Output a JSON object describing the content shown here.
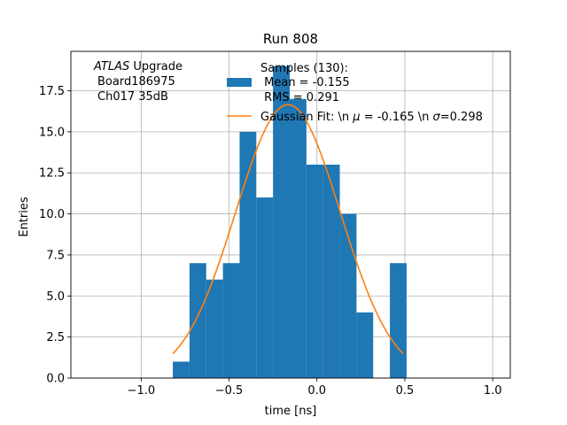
{
  "chart_data": {
    "type": "bar",
    "title": "Run 808",
    "xlabel": "time [ns]",
    "ylabel": "Entries",
    "xlim": [
      -1.4,
      1.1
    ],
    "ylim": [
      0,
      19.9
    ],
    "grid": true,
    "xticks": [
      -1.0,
      -0.5,
      0.0,
      0.5,
      1.0
    ],
    "xtick_labels": [
      "−1.0",
      "−0.5",
      "0.0",
      "0.5",
      "1.0"
    ],
    "yticks": [
      0.0,
      2.5,
      5.0,
      7.5,
      10.0,
      12.5,
      15.0,
      17.5
    ],
    "ytick_labels": [
      "0.0",
      "2.5",
      "5.0",
      "7.5",
      "10.0",
      "12.5",
      "15.0",
      "17.5"
    ],
    "annotation": {
      "atlas": "ATLAS",
      "upgrade": " Upgrade",
      "line2": "Board186975",
      "line3": "Ch017 35dB"
    },
    "histogram": {
      "name": "Samples (130):",
      "legend_lines": [
        "Samples (130):",
        " Mean = -0.155",
        " RMS = 0.291"
      ],
      "color": "#1f77b4",
      "bin_edges": [
        -0.82,
        -0.725,
        -0.63,
        -0.535,
        -0.44,
        -0.345,
        -0.25,
        -0.155,
        -0.06,
        0.035,
        0.13,
        0.225,
        0.32,
        0.415,
        0.51
      ],
      "counts": [
        1,
        7,
        6,
        7,
        15,
        11,
        19,
        17,
        13,
        13,
        10,
        4,
        0,
        7
      ]
    },
    "fit": {
      "name": "Gaussian Fit: \\n μ = -0.165 \\n σ=0.298",
      "legend_label_parts": [
        "Gaussian Fit: \\n ",
        "μ",
        " = -0.165 \\n ",
        "σ",
        "=0.298"
      ],
      "color": "#ff7f0e",
      "mu": -0.165,
      "sigma": 0.298,
      "amplitude": 16.65,
      "x_range": [
        -0.82,
        0.49
      ]
    }
  }
}
